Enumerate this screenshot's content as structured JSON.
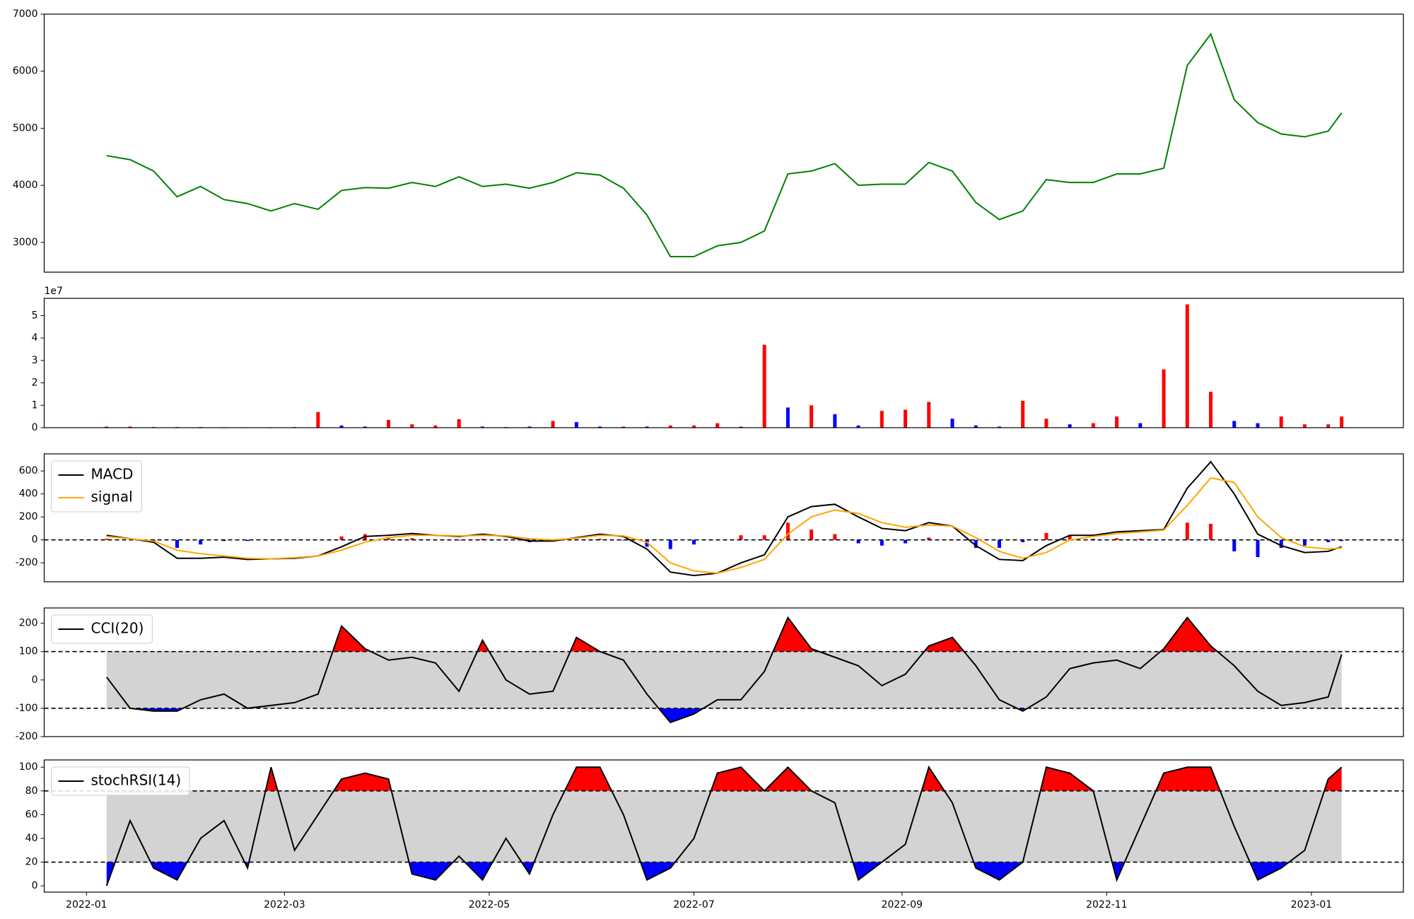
{
  "chart_data": [
    {
      "type": "line",
      "color": "green",
      "x": [
        6,
        13,
        20,
        27,
        34,
        41,
        48,
        55,
        62,
        69,
        76,
        83,
        90,
        97,
        104,
        111,
        118,
        125,
        132,
        139,
        146,
        153,
        160,
        167,
        174,
        181,
        188,
        195,
        202,
        209,
        216,
        223,
        230,
        237,
        244,
        251,
        258,
        265,
        272,
        279,
        286,
        293,
        300,
        307,
        314,
        321,
        328,
        335,
        342,
        349,
        356,
        363,
        370,
        374
      ],
      "values": [
        4520,
        4450,
        4250,
        3800,
        3980,
        3750,
        3680,
        3550,
        3680,
        3580,
        3910,
        3960,
        3950,
        4050,
        3980,
        4150,
        3980,
        4020,
        3950,
        4050,
        4220,
        4180,
        3950,
        3480,
        2750,
        2750,
        2940,
        3000,
        3200,
        4200,
        4250,
        4380,
        4000,
        4020,
        4020,
        4400,
        4250,
        3700,
        3400,
        3550,
        4100,
        4050,
        4050,
        4200,
        4200,
        4300,
        6100,
        6650,
        5500,
        5100,
        4900,
        4850,
        4950,
        5270
      ],
      "xlim": [
        -12.6,
        392.4
      ],
      "ylim": [
        2478,
        7000
      ],
      "yticks": [
        3000,
        4000,
        5000,
        6000,
        7000
      ]
    },
    {
      "type": "bar",
      "offset_label": "1e7",
      "x": [
        6,
        13,
        20,
        27,
        34,
        41,
        48,
        55,
        62,
        69,
        76,
        83,
        90,
        97,
        104,
        111,
        118,
        125,
        132,
        139,
        146,
        153,
        160,
        167,
        174,
        181,
        188,
        195,
        202,
        209,
        216,
        223,
        230,
        237,
        244,
        251,
        258,
        265,
        272,
        279,
        286,
        293,
        300,
        307,
        314,
        321,
        328,
        335,
        342,
        349,
        356,
        363,
        370,
        374
      ],
      "values": [
        0.05,
        0.05,
        0.03,
        0.03,
        0.03,
        0.02,
        0.02,
        0.02,
        0.03,
        0.7,
        0.1,
        0.05,
        0.35,
        0.15,
        0.1,
        0.38,
        0.05,
        0.03,
        0.05,
        0.3,
        0.25,
        0.05,
        0.05,
        0.05,
        0.1,
        0.1,
        0.2,
        0.05,
        3.7,
        0.9,
        1.0,
        0.6,
        0.1,
        0.75,
        0.8,
        1.15,
        0.4,
        0.1,
        0.05,
        1.2,
        0.4,
        0.15,
        0.2,
        0.5,
        0.2,
        2.6,
        5.5,
        1.6,
        0.3,
        0.2,
        0.5,
        0.15,
        0.15,
        0.5
      ],
      "colors": [
        "red",
        "red",
        "blue",
        "red",
        "red",
        "blue",
        "red",
        "red",
        "red",
        "red",
        "blue",
        "blue",
        "red",
        "red",
        "red",
        "red",
        "blue",
        "blue",
        "blue",
        "red",
        "blue",
        "blue",
        "red",
        "blue",
        "red",
        "red",
        "red",
        "red",
        "red",
        "blue",
        "red",
        "blue",
        "blue",
        "red",
        "red",
        "red",
        "blue",
        "blue",
        "blue",
        "red",
        "red",
        "blue",
        "red",
        "red",
        "blue",
        "red",
        "red",
        "red",
        "blue",
        "blue",
        "red",
        "red",
        "red",
        "red"
      ],
      "xlim": [
        -12.6,
        392.4
      ],
      "ylim": [
        0,
        5.77
      ],
      "yticks": [
        0,
        1,
        2,
        3,
        4,
        5
      ]
    },
    {
      "type": "macd",
      "legend": "upper left",
      "hlines": [
        0
      ],
      "x": [
        6,
        13,
        20,
        27,
        34,
        41,
        48,
        55,
        62,
        69,
        76,
        83,
        90,
        97,
        104,
        111,
        118,
        125,
        132,
        139,
        146,
        153,
        160,
        167,
        174,
        181,
        188,
        195,
        202,
        209,
        216,
        223,
        230,
        237,
        244,
        251,
        258,
        265,
        272,
        279,
        286,
        293,
        300,
        307,
        314,
        321,
        328,
        335,
        342,
        349,
        356,
        363,
        370,
        374
      ],
      "series": [
        {
          "name": "MACD",
          "color": "black",
          "values": [
            40,
            10,
            -20,
            -160,
            -160,
            -150,
            -170,
            -165,
            -160,
            -140,
            -60,
            30,
            40,
            55,
            40,
            30,
            50,
            30,
            -10,
            -10,
            20,
            50,
            30,
            -80,
            -280,
            -310,
            -290,
            -200,
            -130,
            200,
            290,
            310,
            200,
            100,
            80,
            150,
            120,
            -50,
            -170,
            -180,
            -50,
            40,
            40,
            70,
            80,
            90,
            450,
            680,
            400,
            50,
            -50,
            -110,
            -100,
            -60
          ]
        },
        {
          "name": "signal",
          "color": "orange",
          "values": [
            30,
            10,
            -10,
            -90,
            -120,
            -140,
            -160,
            -165,
            -155,
            -140,
            -90,
            -20,
            20,
            40,
            40,
            35,
            40,
            35,
            10,
            0,
            15,
            40,
            35,
            -20,
            -200,
            -270,
            -290,
            -240,
            -170,
            50,
            200,
            260,
            230,
            150,
            110,
            130,
            120,
            20,
            -100,
            -160,
            -110,
            0,
            30,
            55,
            70,
            85,
            300,
            540,
            500,
            200,
            20,
            -60,
            -80,
            -70
          ]
        }
      ],
      "histogram": {
        "positive_color": "red",
        "negative_color": "blue",
        "values": [
          10,
          0,
          -10,
          -70,
          -40,
          -10,
          -10,
          0,
          -5,
          0,
          30,
          50,
          20,
          15,
          0,
          -5,
          10,
          -5,
          -20,
          -10,
          5,
          10,
          -5,
          -60,
          -80,
          -40,
          0,
          40,
          40,
          150,
          90,
          50,
          -30,
          -50,
          -30,
          20,
          0,
          -70,
          -70,
          -20,
          60,
          40,
          10,
          15,
          10,
          5,
          150,
          140,
          -100,
          -150,
          -70,
          -50,
          -20,
          -10
        ]
      },
      "xlim": [
        -12.6,
        392.4
      ],
      "ylim": [
        -365,
        749
      ],
      "yticks": [
        -200,
        0,
        200,
        400,
        600
      ]
    },
    {
      "type": "oscillator",
      "legend": "upper left",
      "x": [
        6,
        13,
        20,
        27,
        34,
        41,
        48,
        55,
        62,
        69,
        76,
        83,
        90,
        97,
        104,
        111,
        118,
        125,
        132,
        139,
        146,
        153,
        160,
        167,
        174,
        181,
        188,
        195,
        202,
        209,
        216,
        223,
        230,
        237,
        244,
        251,
        258,
        265,
        272,
        279,
        286,
        293,
        300,
        307,
        314,
        321,
        328,
        335,
        342,
        349,
        356,
        363,
        370,
        374
      ],
      "series": [
        {
          "name": "CCI(20)",
          "color": "black",
          "values": [
            10,
            -100,
            -110,
            -110,
            -70,
            -50,
            -100,
            -90,
            -80,
            -50,
            190,
            110,
            70,
            80,
            60,
            -40,
            140,
            0,
            -50,
            -40,
            150,
            100,
            70,
            -50,
            -150,
            -120,
            -70,
            -70,
            30,
            220,
            110,
            80,
            50,
            -20,
            20,
            120,
            150,
            50,
            -70,
            -110,
            -60,
            40,
            60,
            70,
            40,
            110,
            220,
            120,
            50,
            -40,
            -90,
            -80,
            -60,
            90
          ]
        }
      ],
      "upper": 100,
      "lower": -100,
      "upper_color": "red",
      "lower_color": "blue",
      "band_color": "lightgray",
      "xlim": [
        -12.6,
        392.4
      ],
      "ylim": [
        -200,
        254
      ],
      "yticks": [
        -200,
        -100,
        0,
        100,
        200
      ]
    },
    {
      "type": "oscillator",
      "legend": "upper left",
      "x": [
        6,
        13,
        20,
        27,
        34,
        41,
        48,
        55,
        62,
        69,
        76,
        83,
        90,
        97,
        104,
        111,
        118,
        125,
        132,
        139,
        146,
        153,
        160,
        167,
        174,
        181,
        188,
        195,
        202,
        209,
        216,
        223,
        230,
        237,
        244,
        251,
        258,
        265,
        272,
        279,
        286,
        293,
        300,
        307,
        314,
        321,
        328,
        335,
        342,
        349,
        356,
        363,
        370,
        374
      ],
      "series": [
        {
          "name": "stochRSI(14)",
          "color": "black",
          "values": [
            0,
            55,
            15,
            5,
            40,
            55,
            15,
            100,
            30,
            60,
            90,
            95,
            90,
            10,
            5,
            25,
            5,
            40,
            10,
            60,
            100,
            100,
            60,
            5,
            15,
            40,
            95,
            100,
            80,
            100,
            80,
            70,
            5,
            20,
            35,
            100,
            70,
            15,
            5,
            20,
            100,
            95,
            80,
            5,
            50,
            95,
            100,
            100,
            50,
            5,
            15,
            30,
            90,
            100
          ]
        }
      ],
      "upper": 80,
      "lower": 20,
      "upper_color": "red",
      "lower_color": "blue",
      "band_color": "lightgray",
      "xlim": [
        -12.6,
        392.4
      ],
      "ylim": [
        -5.3,
        106.1
      ],
      "yticks": [
        0,
        20,
        40,
        60,
        80,
        100
      ],
      "xticks": [
        {
          "value": 0,
          "label": "2022-01"
        },
        {
          "value": 59,
          "label": "2022-03"
        },
        {
          "value": 120,
          "label": "2022-05"
        },
        {
          "value": 181,
          "label": "2022-07"
        },
        {
          "value": 243,
          "label": "2022-09"
        },
        {
          "value": 304,
          "label": "2022-11"
        },
        {
          "value": 365,
          "label": "2023-01"
        }
      ]
    }
  ]
}
